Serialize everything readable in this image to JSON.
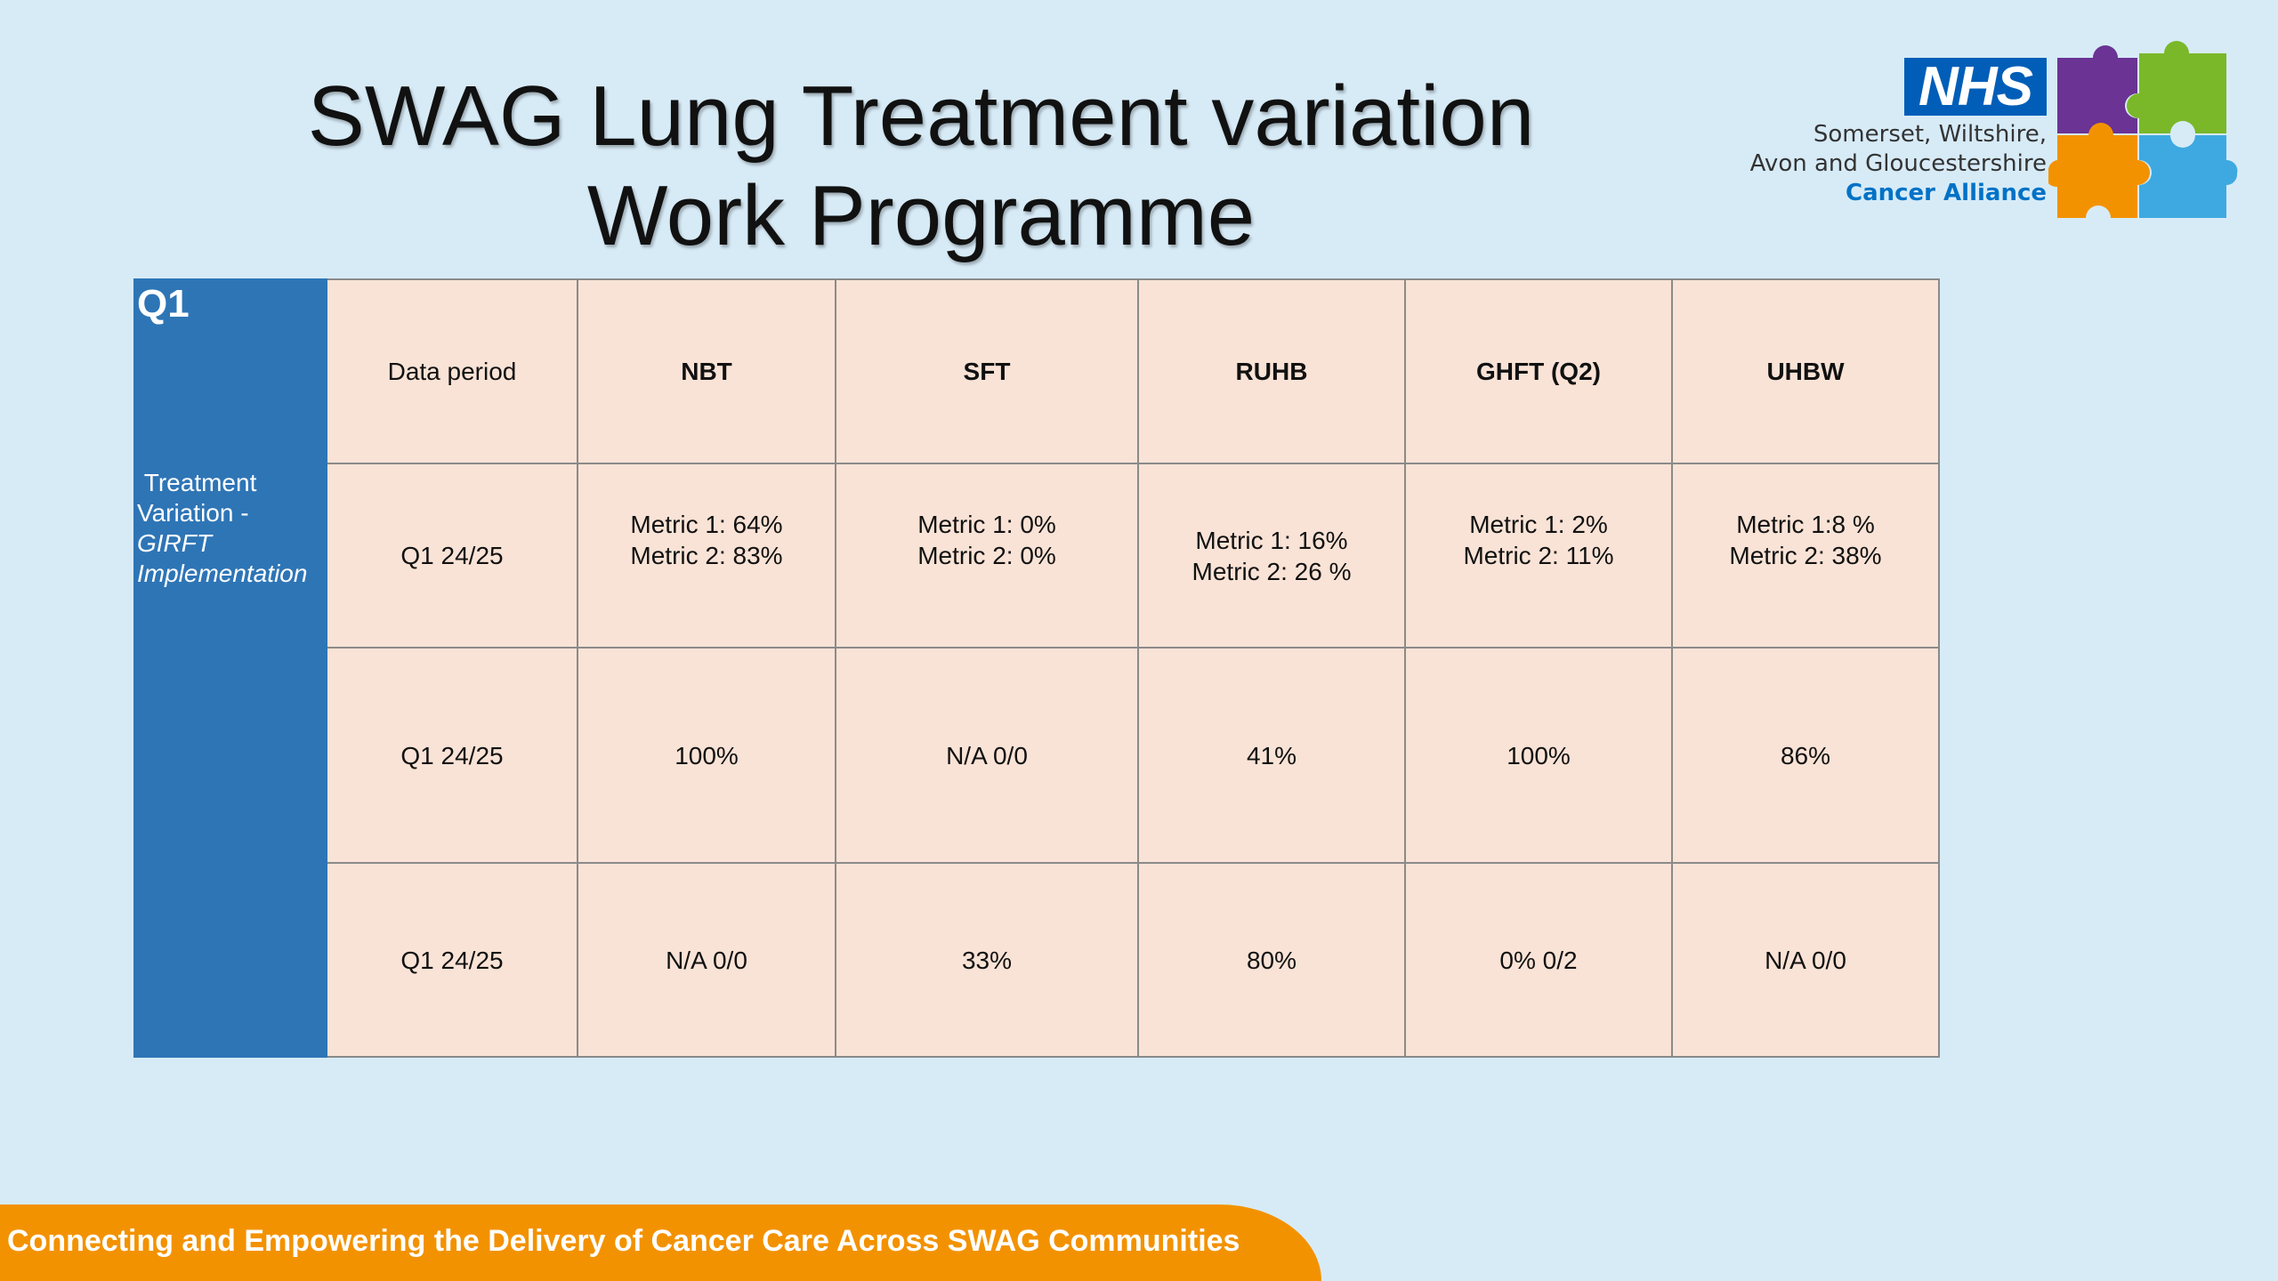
{
  "title": {
    "line1": "SWAG Lung Treatment variation",
    "line2": "Work Programme"
  },
  "logo": {
    "nhs": "NHS",
    "org_line1": "Somerset, Wiltshire,",
    "org_line2": "Avon and Gloucestershire",
    "org_line3": "Cancer Alliance",
    "colors": {
      "nhs_blue": "#005eb8",
      "purple": "#6a3394",
      "green": "#7ab829",
      "orange": "#f39200",
      "light_blue": "#3ea9e0"
    }
  },
  "table": {
    "quarter": "Q1",
    "row_label": {
      "part1": "Treatment",
      "part2": "Variation -",
      "part3": "GIRFT",
      "part4": "Implementation"
    },
    "headers": [
      "Data period",
      "NBT",
      "SFT",
      "RUHB",
      "GHFT (Q2)",
      "UHBW"
    ],
    "rows": [
      {
        "period": "Q1 24/25",
        "cells": [
          {
            "l1": "Metric 1: 64%",
            "l2": "Metric 2: 83%"
          },
          {
            "l1": "Metric 1: 0%",
            "l2": "Metric 2: 0%"
          },
          {
            "l1": "Metric 1: 16%",
            "l2": "Metric 2: 26 %"
          },
          {
            "l1": "Metric 1: 2%",
            "l2": "Metric 2: 11%"
          },
          {
            "l1": "Metric 1:8 %",
            "l2": "Metric 2: 38%"
          }
        ]
      },
      {
        "period": "Q1 24/25",
        "cells": [
          "100%",
          "N/A 0/0",
          "41%",
          "100%",
          "86%"
        ]
      },
      {
        "period": "Q1 24/25",
        "cells": [
          "N/A 0/0",
          "33%",
          "80%",
          "0% 0/2",
          "N/A 0/0"
        ]
      }
    ]
  },
  "footer": {
    "text": "Connecting and Empowering the Delivery of Cancer Care Across SWAG Communities"
  }
}
